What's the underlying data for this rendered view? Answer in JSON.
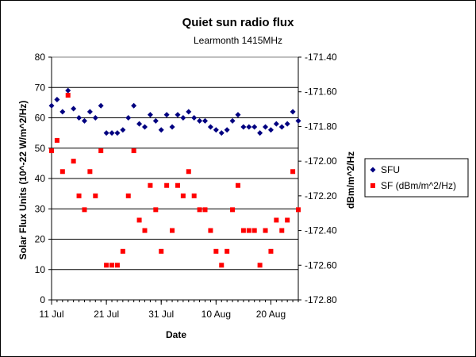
{
  "chart_data": {
    "type": "scatter",
    "title": "Quiet sun radio flux",
    "subtitle": "Learmonth 1415MHz",
    "xlabel": "Date",
    "ylabel_left": "Solar Flux Units (10^-22 W/m^2/Hz)",
    "ylabel_right": "dBm/m^2/Hz",
    "x_ticks": [
      "11 Jul",
      "21 Jul",
      "31 Jul",
      "10 Aug",
      "20 Aug"
    ],
    "y_left_ticks": [
      "0",
      "10",
      "20",
      "30",
      "40",
      "50",
      "60",
      "70",
      "80"
    ],
    "y_right_ticks": [
      "-172.80",
      "-172.60",
      "-172.40",
      "-172.20",
      "-172.00",
      "-171.80",
      "-171.60",
      "-171.40"
    ],
    "ylim_left": [
      0,
      80
    ],
    "ylim_right": [
      -172.8,
      -171.4
    ],
    "x_day_range": [
      0,
      45
    ],
    "grid": "horizontal",
    "legend_position": "right",
    "series": [
      {
        "name": "SFU",
        "marker": "diamond",
        "color": "#000080",
        "axis": "left",
        "x": [
          0,
          1,
          2,
          3,
          4,
          5,
          6,
          7,
          8,
          9,
          10,
          11,
          12,
          13,
          14,
          15,
          16,
          17,
          18,
          19,
          20,
          21,
          22,
          23,
          24,
          25,
          26,
          27,
          28,
          29,
          30,
          31,
          32,
          33,
          34,
          35,
          36,
          37,
          38,
          39,
          40,
          41,
          42,
          43,
          44,
          45
        ],
        "y": [
          64,
          66,
          62,
          69,
          63,
          60,
          59,
          62,
          60,
          64,
          55,
          55,
          55,
          56,
          60,
          64,
          58,
          57,
          61,
          59,
          56,
          61,
          57,
          61,
          60,
          62,
          60,
          59,
          59,
          57,
          56,
          55,
          56,
          59,
          61,
          57,
          57,
          57,
          55,
          57,
          56,
          58,
          57,
          58,
          62,
          59
        ]
      },
      {
        "name": "SF (dBm/m^2/Hz)",
        "marker": "square",
        "color": "#ff0000",
        "axis": "right",
        "x": [
          0,
          1,
          2,
          3,
          4,
          5,
          6,
          7,
          8,
          9,
          10,
          11,
          12,
          13,
          14,
          15,
          16,
          17,
          18,
          19,
          20,
          21,
          22,
          23,
          24,
          25,
          26,
          27,
          28,
          29,
          30,
          31,
          32,
          33,
          34,
          35,
          36,
          37,
          38,
          39,
          40,
          41,
          42,
          43,
          44,
          45
        ],
        "y": [
          -171.94,
          -171.88,
          -172.06,
          -171.62,
          -172.0,
          -172.2,
          -172.28,
          -172.06,
          -172.2,
          -171.94,
          -172.6,
          -172.6,
          -172.6,
          -172.52,
          -172.2,
          -171.94,
          -172.34,
          -172.4,
          -172.14,
          -172.28,
          -172.52,
          -172.14,
          -172.4,
          -172.14,
          -172.2,
          -172.06,
          -172.2,
          -172.28,
          -172.28,
          -172.4,
          -172.52,
          -172.6,
          -172.52,
          -172.28,
          -172.14,
          -172.4,
          -172.4,
          -172.4,
          -172.6,
          -172.4,
          -172.52,
          -172.34,
          -172.4,
          -172.34,
          -172.06,
          -172.28
        ]
      }
    ]
  }
}
